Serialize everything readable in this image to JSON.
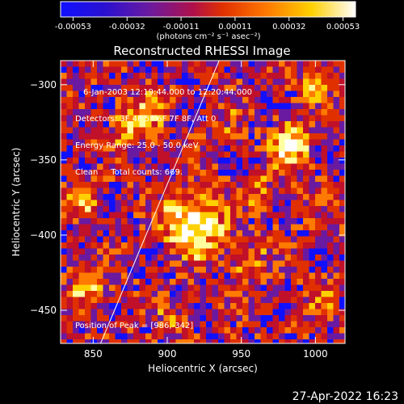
{
  "chart_data": {
    "type": "heatmap",
    "title": "Reconstructed RHESSI Image",
    "xlabel": "Heliocentric X (arcsec)",
    "ylabel": "Heliocentric Y (arcsec)",
    "xlim": [
      828,
      1020
    ],
    "ylim": [
      -472,
      -284
    ],
    "xticks": [
      850,
      900,
      950,
      1000
    ],
    "yticks": [
      -300,
      -350,
      -400,
      -450
    ],
    "colorbar": {
      "ticks": [
        "-0.00053",
        "-0.00032",
        "-0.00011",
        "0.00011",
        "0.00032",
        "0.00053"
      ],
      "vmin": -0.00053,
      "vmax": 0.00053,
      "units_label": "(photons cm⁻² s⁻¹ asec⁻²)",
      "colors": [
        "#1010ff",
        "#6a1aa0",
        "#c0102a",
        "#e03000",
        "#ff7a00",
        "#ffd000",
        "#ffffa0",
        "#ffffff"
      ]
    },
    "limb_line": {
      "points": [
        [
          855,
          -472
        ],
        [
          935,
          -284
        ]
      ]
    },
    "peak": [
      986,
      -342
    ],
    "info_lines": [
      "6-Jan-2003 12:19:44.000 to 12:20:44.000",
      "Detectors: 3F 4F 5F 6F 7F 8F, Att 0",
      "Energy Range: 25.0 - 50.0 keV",
      "Clean     Total counts: 669."
    ],
    "peak_text": "Position of Peak = [986,-342]"
  },
  "footer_timestamp": "27-Apr-2022 16:23"
}
